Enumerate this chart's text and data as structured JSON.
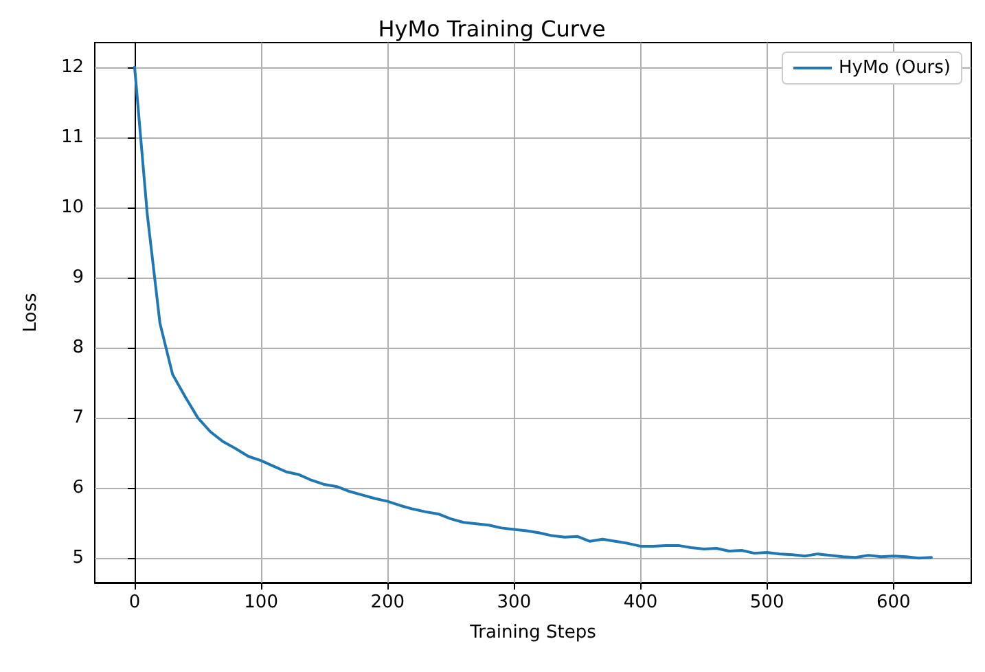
{
  "chart_data": {
    "type": "line",
    "title": "HyMo Training Curve",
    "xlabel": "Training Steps",
    "ylabel": "Loss",
    "x": [
      0,
      10,
      20,
      30,
      40,
      50,
      60,
      70,
      80,
      90,
      100,
      110,
      120,
      130,
      140,
      150,
      160,
      170,
      180,
      190,
      200,
      210,
      220,
      230,
      240,
      250,
      260,
      270,
      280,
      290,
      300,
      310,
      320,
      330,
      340,
      350,
      360,
      370,
      380,
      390,
      400,
      410,
      420,
      430,
      440,
      450,
      460,
      470,
      480,
      490,
      500,
      510,
      520,
      530,
      540,
      550,
      560,
      570,
      580,
      590,
      600,
      610,
      620,
      630
    ],
    "series": [
      {
        "name": "HyMo (Ours)",
        "color": "#1f77b4",
        "values": [
          12,
          9.9,
          8.35,
          7.62,
          7.3,
          7.0,
          6.8,
          6.66,
          6.56,
          6.45,
          6.39,
          6.31,
          6.23,
          6.19,
          6.11,
          6.05,
          6.02,
          5.95,
          5.9,
          5.85,
          5.81,
          5.75,
          5.7,
          5.66,
          5.63,
          5.56,
          5.51,
          5.49,
          5.47,
          5.43,
          5.41,
          5.39,
          5.36,
          5.32,
          5.3,
          5.31,
          5.24,
          5.27,
          5.24,
          5.21,
          5.17,
          5.17,
          5.18,
          5.18,
          5.15,
          5.13,
          5.14,
          5.1,
          5.11,
          5.07,
          5.08,
          5.06,
          5.05,
          5.03,
          5.06,
          5.04,
          5.02,
          5.01,
          5.04,
          5.02,
          5.03,
          5.02,
          5.0,
          5.01
        ]
      }
    ],
    "xlim": [
      -31.5,
      661.5
    ],
    "ylim": [
      4.65,
      12.35
    ],
    "xticks": [
      0,
      100,
      200,
      300,
      400,
      500,
      600
    ],
    "yticks": [
      5,
      6,
      7,
      8,
      9,
      10,
      11,
      12
    ],
    "grid": true,
    "legend": "top right",
    "marker": "none",
    "line_style": "solid"
  }
}
